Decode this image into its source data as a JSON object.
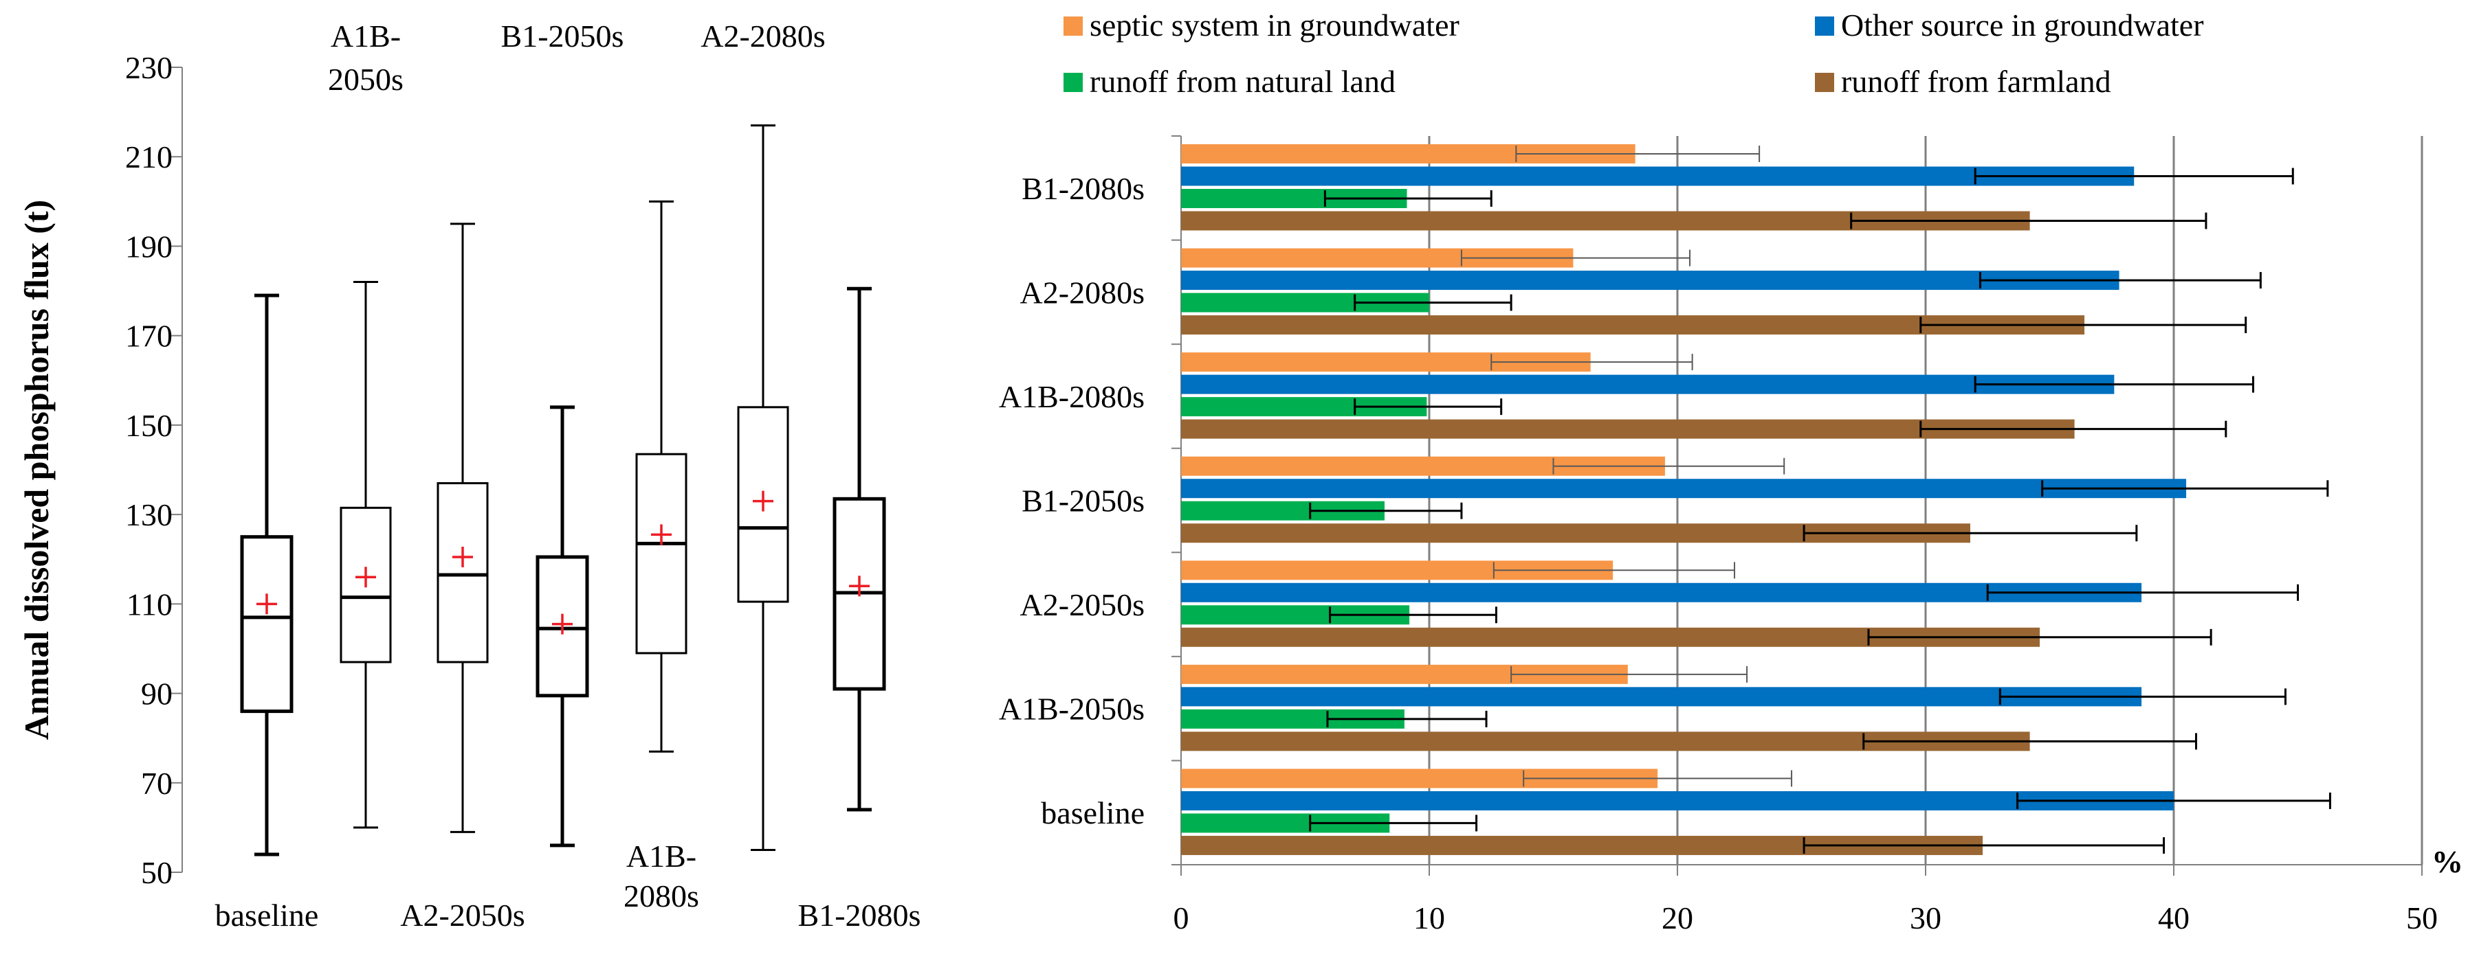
{
  "chart_data": [
    {
      "type": "box",
      "ylabel": "Annual dissolved phosphorus flux (t)",
      "ylim": [
        50,
        230
      ],
      "yticks": [
        50,
        70,
        90,
        110,
        130,
        150,
        170,
        190,
        210,
        230
      ],
      "ytick_labels": [
        "50",
        "70",
        "90",
        "110",
        "130",
        "150",
        "170",
        "190",
        "210",
        "230"
      ],
      "mean_marker": "+",
      "mean_color": "#ee1c25",
      "boxes": [
        {
          "label": "baseline",
          "label_lines": [
            "baseline"
          ],
          "label_pos": "bottom",
          "min": 54,
          "q1": 86,
          "median": 107,
          "q3": 125,
          "max": 179,
          "mean": 110,
          "bold": true
        },
        {
          "label": "A1B-2050s",
          "label_lines": [
            "A1B-",
            "2050s"
          ],
          "label_pos": "top",
          "min": 60,
          "q1": 97,
          "median": 111.5,
          "q3": 131.5,
          "max": 182,
          "mean": 116,
          "bold": false
        },
        {
          "label": "A2-2050s",
          "label_lines": [
            "A2-2050s"
          ],
          "label_pos": "bottom",
          "min": 59,
          "q1": 97,
          "median": 116.5,
          "q3": 137,
          "max": 195,
          "mean": 120.5,
          "bold": false
        },
        {
          "label": "B1-2050s",
          "label_lines": [
            "B1-2050s"
          ],
          "label_pos": "top",
          "min": 56,
          "q1": 89.5,
          "median": 104.5,
          "q3": 120.5,
          "max": 154,
          "mean": 105.5,
          "bold": true
        },
        {
          "label": "A1B-2080s",
          "label_lines": [
            "A1B-",
            "2080s"
          ],
          "label_pos": "bottom",
          "min": 77,
          "q1": 99,
          "median": 123.5,
          "q3": 143.5,
          "max": 200,
          "mean": 125.5,
          "bold": false
        },
        {
          "label": "A2-2080s",
          "label_lines": [
            "A2-2080s"
          ],
          "label_pos": "top",
          "min": 55,
          "q1": 110.5,
          "median": 127,
          "q3": 154,
          "max": 217,
          "mean": 133,
          "bold": false
        },
        {
          "label": "B1-2080s",
          "label_lines": [
            "B1-2080s"
          ],
          "label_pos": "bottom",
          "min": 64,
          "q1": 91,
          "median": 112.5,
          "q3": 133.5,
          "max": 180.5,
          "mean": 114,
          "bold": true
        }
      ]
    },
    {
      "type": "bar",
      "orientation": "horizontal",
      "xlabel": "%",
      "xlim": [
        0,
        50
      ],
      "xticks": [
        0,
        10,
        20,
        30,
        40,
        50
      ],
      "xtick_labels": [
        "0",
        "10",
        "20",
        "30",
        "40",
        "50"
      ],
      "grid": true,
      "legend_position": "top",
      "categories": [
        "B1-2080s",
        "A2-2080s",
        "A1B-2080s",
        "B1-2050s",
        "A2-2050s",
        "A1B-2050s",
        "baseline"
      ],
      "series": [
        {
          "name": "septic system in groundwater",
          "color": "#f79646",
          "values": [
            18.3,
            15.8,
            16.5,
            19.5,
            17.4,
            18.0,
            19.2
          ],
          "err_low": [
            13.5,
            11.3,
            12.5,
            15.0,
            12.6,
            13.3,
            13.8
          ],
          "err_high": [
            23.3,
            20.5,
            20.6,
            24.3,
            22.3,
            22.8,
            24.6
          ],
          "err_color": "#595959"
        },
        {
          "name": "Other source in groundwater",
          "color": "#0070c0",
          "values": [
            38.4,
            37.8,
            37.6,
            40.5,
            38.7,
            38.7,
            40.0
          ],
          "err_low": [
            32.0,
            32.2,
            32.0,
            34.7,
            32.5,
            33.0,
            33.7
          ],
          "err_high": [
            44.8,
            43.5,
            43.2,
            46.2,
            45.0,
            44.5,
            46.3
          ],
          "err_color": "#000000"
        },
        {
          "name": "runoff from natural land",
          "color": "#00b050",
          "values": [
            9.1,
            10.0,
            9.9,
            8.2,
            9.2,
            9.0,
            8.4
          ],
          "err_low": [
            5.8,
            7.0,
            7.0,
            5.2,
            6.0,
            5.9,
            5.2
          ],
          "err_high": [
            12.5,
            13.3,
            12.9,
            11.3,
            12.7,
            12.3,
            11.9
          ],
          "err_color": "#000000"
        },
        {
          "name": "runoff from farmland",
          "color": "#996633",
          "values": [
            34.2,
            36.4,
            36.0,
            31.8,
            34.6,
            34.2,
            32.3
          ],
          "err_low": [
            27.0,
            29.8,
            29.8,
            25.1,
            27.7,
            27.5,
            25.1
          ],
          "err_high": [
            41.3,
            42.9,
            42.1,
            38.5,
            41.5,
            40.9,
            39.6
          ],
          "err_color": "#000000"
        }
      ]
    }
  ]
}
